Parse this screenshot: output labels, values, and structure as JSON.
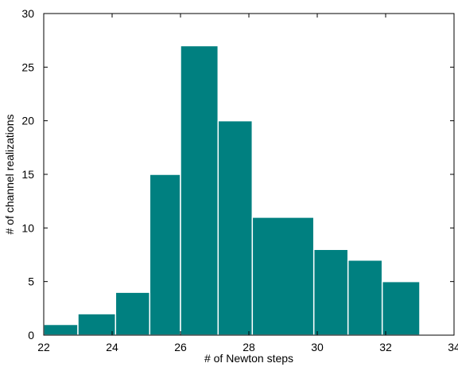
{
  "chart_data": {
    "type": "bar",
    "subtype": "histogram",
    "bins": [
      {
        "x0": 22.0,
        "x1": 23.0,
        "value": 1
      },
      {
        "x0": 23.0,
        "x1": 24.1,
        "value": 2
      },
      {
        "x0": 24.1,
        "x1": 25.1,
        "value": 4
      },
      {
        "x0": 25.1,
        "x1": 26.0,
        "value": 15
      },
      {
        "x0": 26.0,
        "x1": 27.1,
        "value": 27
      },
      {
        "x0": 27.1,
        "x1": 28.1,
        "value": 20
      },
      {
        "x0": 28.1,
        "x1": 29.9,
        "value": 11
      },
      {
        "x0": 29.9,
        "x1": 30.9,
        "value": 8
      },
      {
        "x0": 30.9,
        "x1": 31.9,
        "value": 7
      },
      {
        "x0": 31.9,
        "x1": 33.0,
        "value": 5
      },
      {
        "x0": 33.0,
        "x1": 34.0,
        "value": 0
      }
    ],
    "xlabel": "# of Newton steps",
    "ylabel": "# of channel realizations",
    "xlim": [
      22,
      34
    ],
    "ylim": [
      0,
      30
    ],
    "xticks": [
      "22",
      "24",
      "26",
      "28",
      "30",
      "32",
      "34"
    ],
    "yticks": [
      "0",
      "5",
      "10",
      "15",
      "20",
      "25",
      "30"
    ],
    "bar_color": "#008080",
    "grid": false
  }
}
